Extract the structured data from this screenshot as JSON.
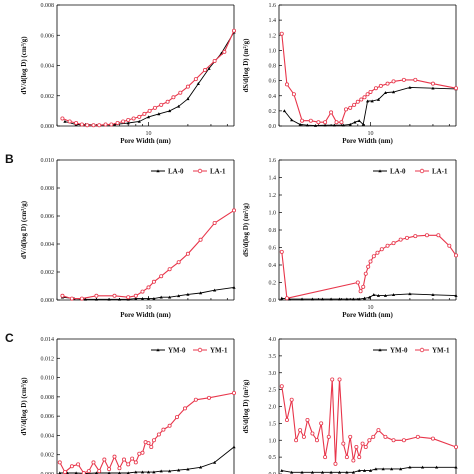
{
  "colors": {
    "series0": "#000000",
    "series1": "#e8364b",
    "axis": "#000000"
  },
  "chart_data": [
    {
      "id": "a-left",
      "type": "line",
      "panel_label": "",
      "xscale": "log",
      "xlim": [
        2,
        45
      ],
      "ylim": [
        0,
        0.008
      ],
      "yticks": [
        "0.000",
        "0.002",
        "0.004",
        "0.006",
        "0.008"
      ],
      "ytick_values": [
        0,
        0.002,
        0.004,
        0.006,
        0.008
      ],
      "xticks": [
        10
      ],
      "xtick_labels": [
        "10"
      ],
      "xlabel": "Pore Width (nm)",
      "ylabel": "dV/d(log D) (cm³/g)",
      "legend": [],
      "series": [
        {
          "x": [
            2.3,
            2.8,
            3.3,
            4.2,
            5.5,
            7,
            8.5,
            10,
            12,
            14.5,
            17,
            20,
            24,
            29,
            36,
            45
          ],
          "y": [
            0.0003,
            0.0001,
            0.0001,
            5e-05,
            0.0001,
            0.0002,
            0.0003,
            0.0006,
            0.0008,
            0.001,
            0.0013,
            0.0018,
            0.0028,
            0.0038,
            0.0048,
            0.0062
          ]
        },
        {
          "x": [
            2.2,
            2.5,
            2.8,
            3.1,
            3.4,
            3.8,
            4.2,
            4.7,
            5.2,
            5.8,
            6.4,
            7,
            7.7,
            8.5,
            9.3,
            10.2,
            11.2,
            12.5,
            14,
            15.5,
            17.5,
            20,
            23,
            27,
            32,
            38,
            45
          ],
          "y": [
            0.0005,
            0.0003,
            0.0002,
            0.0001,
            5e-05,
            5e-05,
            5e-05,
            0.0001,
            0.0001,
            0.0002,
            0.0003,
            0.0004,
            0.0005,
            0.0006,
            0.0008,
            0.001,
            0.0012,
            0.0014,
            0.0016,
            0.0019,
            0.0022,
            0.0026,
            0.0031,
            0.0037,
            0.0043,
            0.0049,
            0.0063
          ]
        }
      ]
    },
    {
      "id": "a-right",
      "type": "line",
      "panel_label": "",
      "xscale": "log",
      "xlim": [
        2,
        45
      ],
      "ylim": [
        0,
        1.6
      ],
      "yticks": [
        "0.0",
        "0.2",
        "0.4",
        "0.6",
        "0.8",
        "1.0",
        "1.2",
        "1.4",
        "1.6"
      ],
      "ytick_values": [
        0,
        0.2,
        0.4,
        0.6,
        0.8,
        1.0,
        1.2,
        1.4,
        1.6
      ],
      "xticks": [
        10
      ],
      "xtick_labels": [
        "10"
      ],
      "xlabel": "Pore Width (nm)",
      "ylabel": "dS/d(log D) (m²/g)",
      "legend": [],
      "series": [
        {
          "x": [
            2.2,
            2.5,
            2.9,
            3.3,
            3.8,
            4.5,
            5.3,
            6.2,
            7,
            7.6,
            8.2,
            8.8,
            9.5,
            10.3,
            11.5,
            13,
            15,
            20,
            30,
            45
          ],
          "y": [
            0.2,
            0.08,
            0.02,
            0.01,
            0.005,
            0.01,
            0.01,
            0.01,
            0.02,
            0.05,
            0.07,
            0.02,
            0.33,
            0.33,
            0.35,
            0.44,
            0.45,
            0.51,
            0.5,
            0.49
          ]
        },
        {
          "x": [
            2.1,
            2.3,
            2.6,
            3,
            3.5,
            4,
            4.5,
            5,
            5.5,
            6,
            6.5,
            7,
            7.5,
            8,
            8.5,
            9,
            9.5,
            10,
            11,
            12,
            13.5,
            15,
            18,
            22,
            30,
            45
          ],
          "y": [
            1.22,
            0.55,
            0.42,
            0.07,
            0.07,
            0.05,
            0.05,
            0.18,
            0.05,
            0.05,
            0.22,
            0.24,
            0.28,
            0.32,
            0.35,
            0.38,
            0.42,
            0.45,
            0.5,
            0.53,
            0.56,
            0.59,
            0.61,
            0.61,
            0.56,
            0.5
          ]
        }
      ]
    },
    {
      "id": "b-left",
      "type": "line",
      "panel_label": "B",
      "xscale": "log",
      "xlim": [
        2,
        45
      ],
      "ylim": [
        0,
        0.01
      ],
      "yticks": [
        "0.000",
        "0.002",
        "0.004",
        "0.006",
        "0.008",
        "0.010"
      ],
      "ytick_values": [
        0,
        0.002,
        0.004,
        0.006,
        0.008,
        0.01
      ],
      "xticks": [
        10
      ],
      "xtick_labels": [
        "10"
      ],
      "xlabel": "Pore Width (nm)",
      "ylabel": "dV/d(log D) (cm³/g)",
      "legend": [
        "LA-0",
        "LA-1"
      ],
      "series": [
        {
          "x": [
            2.2,
            2.7,
            3.3,
            4,
            5,
            6,
            7,
            8,
            9,
            10,
            11,
            12.5,
            14.5,
            17,
            20,
            25,
            32,
            45
          ],
          "y": [
            0.0002,
            0.0001,
            5e-05,
            5e-05,
            5e-05,
            5e-05,
            5e-05,
            0.0001,
            0.0001,
            0.0001,
            0.0001,
            0.0002,
            0.0002,
            0.0003,
            0.0004,
            0.0005,
            0.0007,
            0.0009
          ]
        },
        {
          "x": [
            2.2,
            2.6,
            3.1,
            4,
            5.5,
            7,
            8,
            9,
            10,
            11,
            12.5,
            14.5,
            17,
            20,
            25,
            32,
            45
          ],
          "y": [
            0.0003,
            0.0001,
            0.0001,
            0.0003,
            0.0003,
            0.0002,
            0.0003,
            0.0006,
            0.0009,
            0.0013,
            0.0017,
            0.0022,
            0.0027,
            0.0033,
            0.0043,
            0.0055,
            0.0064
          ]
        }
      ]
    },
    {
      "id": "b-right",
      "type": "line",
      "panel_label": "",
      "xscale": "log",
      "xlim": [
        2,
        45
      ],
      "ylim": [
        0,
        1.6
      ],
      "yticks": [
        "0.0",
        "0.2",
        "0.4",
        "0.6",
        "0.8",
        "1.0",
        "1.2",
        "1.4",
        "1.6"
      ],
      "ytick_values": [
        0,
        0.2,
        0.4,
        0.6,
        0.8,
        1.0,
        1.2,
        1.4,
        1.6
      ],
      "xticks": [
        10
      ],
      "xtick_labels": [
        "10"
      ],
      "xlabel": "Pore Width (nm)",
      "ylabel": "dS/d(log D) (m²/g)",
      "legend": [
        "LA-0",
        "LA-1"
      ],
      "series": [
        {
          "x": [
            2.1,
            2.4,
            3,
            3.6,
            4.3,
            5,
            5.8,
            6.6,
            7.4,
            8.2,
            9,
            9.8,
            10.6,
            11.5,
            13,
            15,
            20,
            30,
            45
          ],
          "y": [
            0.02,
            0.01,
            0.01,
            0.01,
            0.01,
            0.01,
            0.01,
            0.01,
            0.01,
            0.01,
            0.02,
            0.03,
            0.06,
            0.05,
            0.05,
            0.06,
            0.07,
            0.06,
            0.05
          ]
        },
        {
          "x": [
            2.1,
            2.3,
            8,
            8.4,
            8.8,
            9.2,
            9.6,
            10,
            10.6,
            11.3,
            12.2,
            13.5,
            15,
            17,
            19,
            22,
            27,
            33,
            40,
            45
          ],
          "y": [
            0.55,
            0.02,
            0.2,
            0.1,
            0.15,
            0.3,
            0.38,
            0.44,
            0.5,
            0.54,
            0.58,
            0.62,
            0.65,
            0.69,
            0.71,
            0.73,
            0.74,
            0.74,
            0.62,
            0.51
          ]
        }
      ]
    },
    {
      "id": "c-left",
      "type": "line",
      "panel_label": "C",
      "xscale": "log",
      "xlim": [
        2,
        45
      ],
      "ylim": [
        0,
        0.014
      ],
      "yticks": [
        "0.000",
        "0.002",
        "0.004",
        "0.006",
        "0.008",
        "0.010",
        "0.012",
        "0.014"
      ],
      "ytick_values": [
        0,
        0.002,
        0.004,
        0.006,
        0.008,
        0.01,
        0.012,
        0.014
      ],
      "xticks": [],
      "xtick_labels": [],
      "xlabel": "",
      "ylabel": "dV/d(log D) (cm³/g)",
      "legend": [
        "YM-0",
        "YM-1"
      ],
      "series": [
        {
          "x": [
            2.1,
            2.4,
            2.8,
            3.3,
            4,
            5,
            6,
            7,
            8,
            9,
            10,
            11,
            12.5,
            14.5,
            17,
            20,
            25,
            32,
            45
          ],
          "y": [
            0.0001,
            0.0001,
            0.0001,
            5e-05,
            0.0001,
            0.0001,
            0.0001,
            0.0001,
            0.0002,
            0.0002,
            0.0002,
            0.0002,
            0.0003,
            0.0003,
            0.0004,
            0.0005,
            0.0007,
            0.0012,
            0.0028
          ]
        },
        {
          "x": [
            2.1,
            2.3,
            2.6,
            2.9,
            3.2,
            3.5,
            3.8,
            4.2,
            4.6,
            5,
            5.5,
            6,
            6.5,
            7,
            7.5,
            8,
            8.5,
            9,
            9.5,
            10,
            10.5,
            11,
            12,
            13,
            14.5,
            16.5,
            19,
            23,
            29,
            45
          ],
          "y": [
            0.0012,
            0.0002,
            0.0008,
            0.001,
            0.0001,
            0.0003,
            0.0012,
            0.0003,
            0.0015,
            0.0005,
            0.0018,
            0.0006,
            0.0015,
            0.001,
            0.0016,
            0.0012,
            0.0021,
            0.0022,
            0.0033,
            0.0032,
            0.0028,
            0.0035,
            0.0041,
            0.0046,
            0.005,
            0.0059,
            0.0068,
            0.0077,
            0.0079,
            0.0084
          ]
        }
      ]
    },
    {
      "id": "c-right",
      "type": "line",
      "panel_label": "",
      "xscale": "log",
      "xlim": [
        2,
        45
      ],
      "ylim": [
        0,
        4.0
      ],
      "yticks": [
        "0.0",
        "0.5",
        "1.0",
        "1.5",
        "2.0",
        "2.5",
        "3.0",
        "3.5",
        "4.0"
      ],
      "ytick_values": [
        0,
        0.5,
        1,
        1.5,
        2,
        2.5,
        3,
        3.5,
        4
      ],
      "xticks": [],
      "xtick_labels": [],
      "xlabel": "",
      "ylabel": "dS/d(log D) (m²/g)",
      "legend": [
        "YM-0",
        "YM-1"
      ],
      "series": [
        {
          "x": [
            2.1,
            2.5,
            3,
            3.6,
            4.3,
            5,
            5.8,
            6.6,
            7.4,
            8.2,
            9,
            10,
            11,
            12.5,
            14.5,
            17,
            20,
            25,
            32,
            45
          ],
          "y": [
            0.1,
            0.05,
            0.05,
            0.05,
            0.05,
            0.05,
            0.05,
            0.05,
            0.05,
            0.1,
            0.1,
            0.1,
            0.15,
            0.15,
            0.15,
            0.15,
            0.2,
            0.2,
            0.2,
            0.2
          ]
        },
        {
          "x": [
            2.1,
            2.3,
            2.5,
            2.7,
            2.9,
            3.1,
            3.3,
            3.6,
            3.9,
            4.2,
            4.5,
            4.8,
            5.1,
            5.4,
            5.8,
            6.2,
            6.6,
            7,
            7.4,
            7.8,
            8.2,
            8.7,
            9.2,
            9.8,
            10.5,
            11.5,
            13,
            15,
            18,
            23,
            30,
            45
          ],
          "y": [
            2.6,
            1.6,
            2.2,
            1.0,
            1.3,
            1.1,
            1.6,
            1.2,
            1.0,
            1.5,
            0.5,
            1.1,
            2.8,
            0.3,
            2.8,
            0.9,
            0.5,
            1.1,
            0.4,
            0.8,
            0.5,
            0.9,
            0.8,
            1.0,
            1.1,
            1.3,
            1.1,
            1.0,
            1.0,
            1.1,
            1.05,
            0.8
          ]
        }
      ]
    }
  ]
}
